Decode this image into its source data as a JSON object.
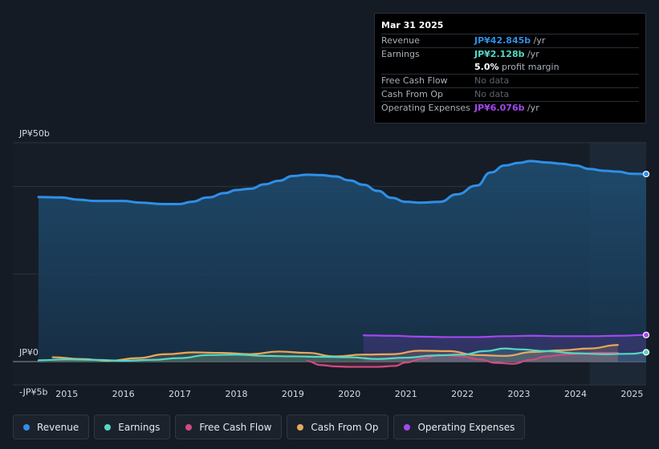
{
  "tooltip": {
    "date": "Mar 31 2025",
    "rows": [
      {
        "label": "Revenue",
        "value": "JP¥42.845b",
        "unit": " /yr"
      },
      {
        "label": "Earnings",
        "value": "JP¥2.128b",
        "unit": " /yr"
      },
      {
        "label": "",
        "value": "5.0%",
        "unit": " profit margin"
      },
      {
        "label": "Free Cash Flow",
        "value": "No data",
        "unit": ""
      },
      {
        "label": "Cash From Op",
        "value": "No data",
        "unit": ""
      },
      {
        "label": "Operating Expenses",
        "value": "JP¥6.076b",
        "unit": " /yr"
      }
    ]
  },
  "legend": [
    {
      "label": "Revenue",
      "color": "#2f8fe6"
    },
    {
      "label": "Earnings",
      "color": "#53d9c4"
    },
    {
      "label": "Free Cash Flow",
      "color": "#d14b7f"
    },
    {
      "label": "Cash From Op",
      "color": "#e8a85a"
    },
    {
      "label": "Operating Expenses",
      "color": "#a347f0"
    }
  ],
  "chart_data": {
    "type": "line",
    "title": "",
    "xlabel": "",
    "ylabel": "",
    "y_labels": [
      "JP¥50b",
      "JP¥0",
      "-JP¥5b"
    ],
    "ylim": [
      -5,
      50
    ],
    "xlim": [
      2014.5,
      2025.25
    ],
    "x_ticks": [
      "2015",
      "2016",
      "2017",
      "2018",
      "2019",
      "2020",
      "2021",
      "2022",
      "2023",
      "2024",
      "2025"
    ],
    "highlight_start": 2024.25,
    "series": [
      {
        "name": "Revenue",
        "color": "#2f8fe6",
        "filled": true,
        "points": [
          [
            2014.5,
            37.6
          ],
          [
            2014.9,
            37.5
          ],
          [
            2015.2,
            37.0
          ],
          [
            2015.5,
            36.7
          ],
          [
            2016.0,
            36.7
          ],
          [
            2016.3,
            36.3
          ],
          [
            2016.7,
            36.0
          ],
          [
            2017.0,
            36.0
          ],
          [
            2017.2,
            36.5
          ],
          [
            2017.5,
            37.5
          ],
          [
            2017.8,
            38.5
          ],
          [
            2018.0,
            39.2
          ],
          [
            2018.25,
            39.5
          ],
          [
            2018.5,
            40.5
          ],
          [
            2018.75,
            41.3
          ],
          [
            2019.0,
            42.4
          ],
          [
            2019.25,
            42.7
          ],
          [
            2019.5,
            42.6
          ],
          [
            2019.75,
            42.3
          ],
          [
            2020.0,
            41.4
          ],
          [
            2020.25,
            40.4
          ],
          [
            2020.5,
            39.0
          ],
          [
            2020.75,
            37.4
          ],
          [
            2021.0,
            36.5
          ],
          [
            2021.25,
            36.3
          ],
          [
            2021.6,
            36.5
          ],
          [
            2021.9,
            38.2
          ],
          [
            2022.25,
            40.2
          ],
          [
            2022.5,
            43.2
          ],
          [
            2022.75,
            44.8
          ],
          [
            2023.0,
            45.4
          ],
          [
            2023.2,
            45.8
          ],
          [
            2023.5,
            45.5
          ],
          [
            2023.75,
            45.2
          ],
          [
            2024.0,
            44.8
          ],
          [
            2024.25,
            44.0
          ],
          [
            2024.5,
            43.6
          ],
          [
            2024.75,
            43.4
          ],
          [
            2025.0,
            42.9
          ],
          [
            2025.25,
            42.845
          ]
        ]
      },
      {
        "name": "Earnings",
        "color": "#53d9c4",
        "filled": true,
        "points": [
          [
            2014.5,
            0.3
          ],
          [
            2015.0,
            0.5
          ],
          [
            2015.5,
            0.4
          ],
          [
            2016.0,
            0.2
          ],
          [
            2016.5,
            0.4
          ],
          [
            2017.0,
            0.8
          ],
          [
            2017.5,
            1.5
          ],
          [
            2018.0,
            1.6
          ],
          [
            2018.5,
            1.3
          ],
          [
            2019.0,
            1.2
          ],
          [
            2019.5,
            1.1
          ],
          [
            2020.0,
            1.0
          ],
          [
            2020.5,
            0.6
          ],
          [
            2021.0,
            0.9
          ],
          [
            2021.5,
            1.4
          ],
          [
            2022.0,
            1.6
          ],
          [
            2022.4,
            2.4
          ],
          [
            2022.75,
            3.0
          ],
          [
            2023.0,
            2.8
          ],
          [
            2023.5,
            2.4
          ],
          [
            2024.0,
            1.9
          ],
          [
            2024.5,
            1.7
          ],
          [
            2025.0,
            1.8
          ],
          [
            2025.25,
            2.128
          ]
        ]
      },
      {
        "name": "Free Cash Flow",
        "color": "#d14b7f",
        "filled": true,
        "points": [
          [
            2019.25,
            0.1
          ],
          [
            2019.5,
            -0.8
          ],
          [
            2019.75,
            -1.1
          ],
          [
            2020.0,
            -1.2
          ],
          [
            2020.5,
            -1.2
          ],
          [
            2020.8,
            -1.0
          ],
          [
            2021.0,
            -0.2
          ],
          [
            2021.3,
            0.7
          ],
          [
            2021.6,
            1.5
          ],
          [
            2022.0,
            1.2
          ],
          [
            2022.3,
            0.5
          ],
          [
            2022.6,
            -0.3
          ],
          [
            2022.9,
            -0.5
          ],
          [
            2023.2,
            0.4
          ],
          [
            2023.5,
            1.2
          ],
          [
            2023.8,
            1.6
          ],
          [
            2024.1,
            1.8
          ],
          [
            2024.4,
            2.0
          ],
          [
            2024.75,
            2.0
          ]
        ]
      },
      {
        "name": "Cash From Op",
        "color": "#e8a85a",
        "filled": true,
        "points": [
          [
            2014.75,
            1.0
          ],
          [
            2015.25,
            0.6
          ],
          [
            2015.75,
            0.2
          ],
          [
            2016.25,
            0.8
          ],
          [
            2016.75,
            1.7
          ],
          [
            2017.25,
            2.1
          ],
          [
            2017.75,
            2.0
          ],
          [
            2018.25,
            1.7
          ],
          [
            2018.75,
            2.3
          ],
          [
            2019.25,
            2.0
          ],
          [
            2019.75,
            1.2
          ],
          [
            2020.25,
            1.6
          ],
          [
            2020.75,
            1.7
          ],
          [
            2021.25,
            2.5
          ],
          [
            2021.75,
            2.4
          ],
          [
            2022.25,
            1.5
          ],
          [
            2022.75,
            1.3
          ],
          [
            2023.25,
            2.2
          ],
          [
            2023.75,
            2.6
          ],
          [
            2024.25,
            3.0
          ],
          [
            2024.75,
            3.8
          ]
        ]
      },
      {
        "name": "Operating Expenses",
        "color": "#a347f0",
        "filled": true,
        "points": [
          [
            2020.25,
            6.0
          ],
          [
            2020.75,
            5.9
          ],
          [
            2021.25,
            5.7
          ],
          [
            2021.75,
            5.6
          ],
          [
            2022.25,
            5.6
          ],
          [
            2022.75,
            5.8
          ],
          [
            2023.25,
            5.9
          ],
          [
            2023.75,
            5.8
          ],
          [
            2024.25,
            5.8
          ],
          [
            2024.75,
            5.9
          ],
          [
            2025.25,
            6.076
          ]
        ]
      }
    ]
  }
}
